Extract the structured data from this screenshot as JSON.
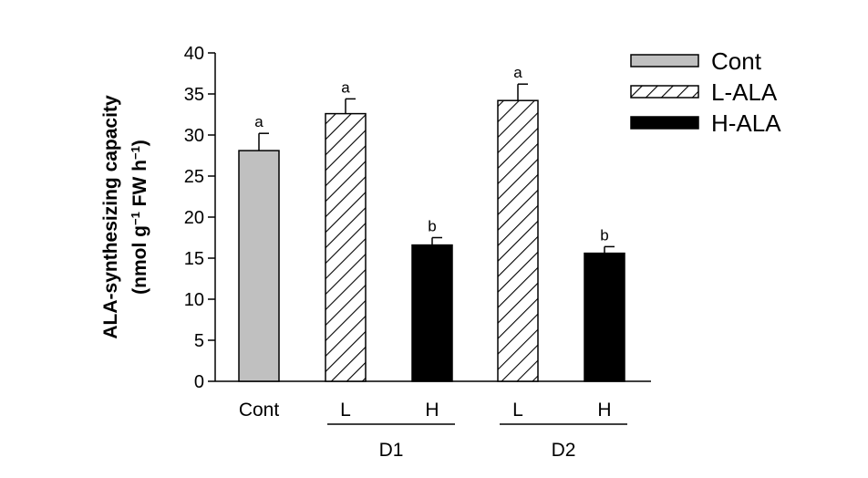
{
  "chart_data": {
    "type": "bar",
    "ylabel_line1": "ALA-synthesizing capacity",
    "ylabel_line2_prefix": "(nmol g",
    "ylabel_sup1": "−1",
    "ylabel_line2_mid": " FW h",
    "ylabel_sup2": "−1",
    "ylabel_line2_suffix": ")",
    "ylim": [
      0,
      40
    ],
    "yticks": [
      "0",
      "5",
      "10",
      "15",
      "20",
      "25",
      "30",
      "35",
      "40"
    ],
    "categories": [
      "Cont",
      "L",
      "H",
      "L",
      "H"
    ],
    "groups": [
      {
        "label": "D1",
        "members": [
          1,
          2
        ]
      },
      {
        "label": "D2",
        "members": [
          3,
          4
        ]
      }
    ],
    "bars": [
      {
        "value": 28.1,
        "error": 2.1,
        "series": "Cont",
        "letter": "a"
      },
      {
        "value": 32.6,
        "error": 1.8,
        "series": "L-ALA",
        "letter": "a"
      },
      {
        "value": 16.6,
        "error": 0.9,
        "series": "H-ALA",
        "letter": "b"
      },
      {
        "value": 34.2,
        "error": 2.0,
        "series": "L-ALA",
        "letter": "a"
      },
      {
        "value": 15.6,
        "error": 0.8,
        "series": "H-ALA",
        "letter": "b"
      }
    ],
    "legend": [
      {
        "name": "Cont",
        "style": "gray"
      },
      {
        "name": "L-ALA",
        "style": "hatch"
      },
      {
        "name": "H-ALA",
        "style": "black"
      }
    ],
    "legend_position": "top-right",
    "colors": {
      "gray": "#c0c0c0",
      "black": "#000000",
      "hatch": "#000000"
    },
    "grid": false
  }
}
